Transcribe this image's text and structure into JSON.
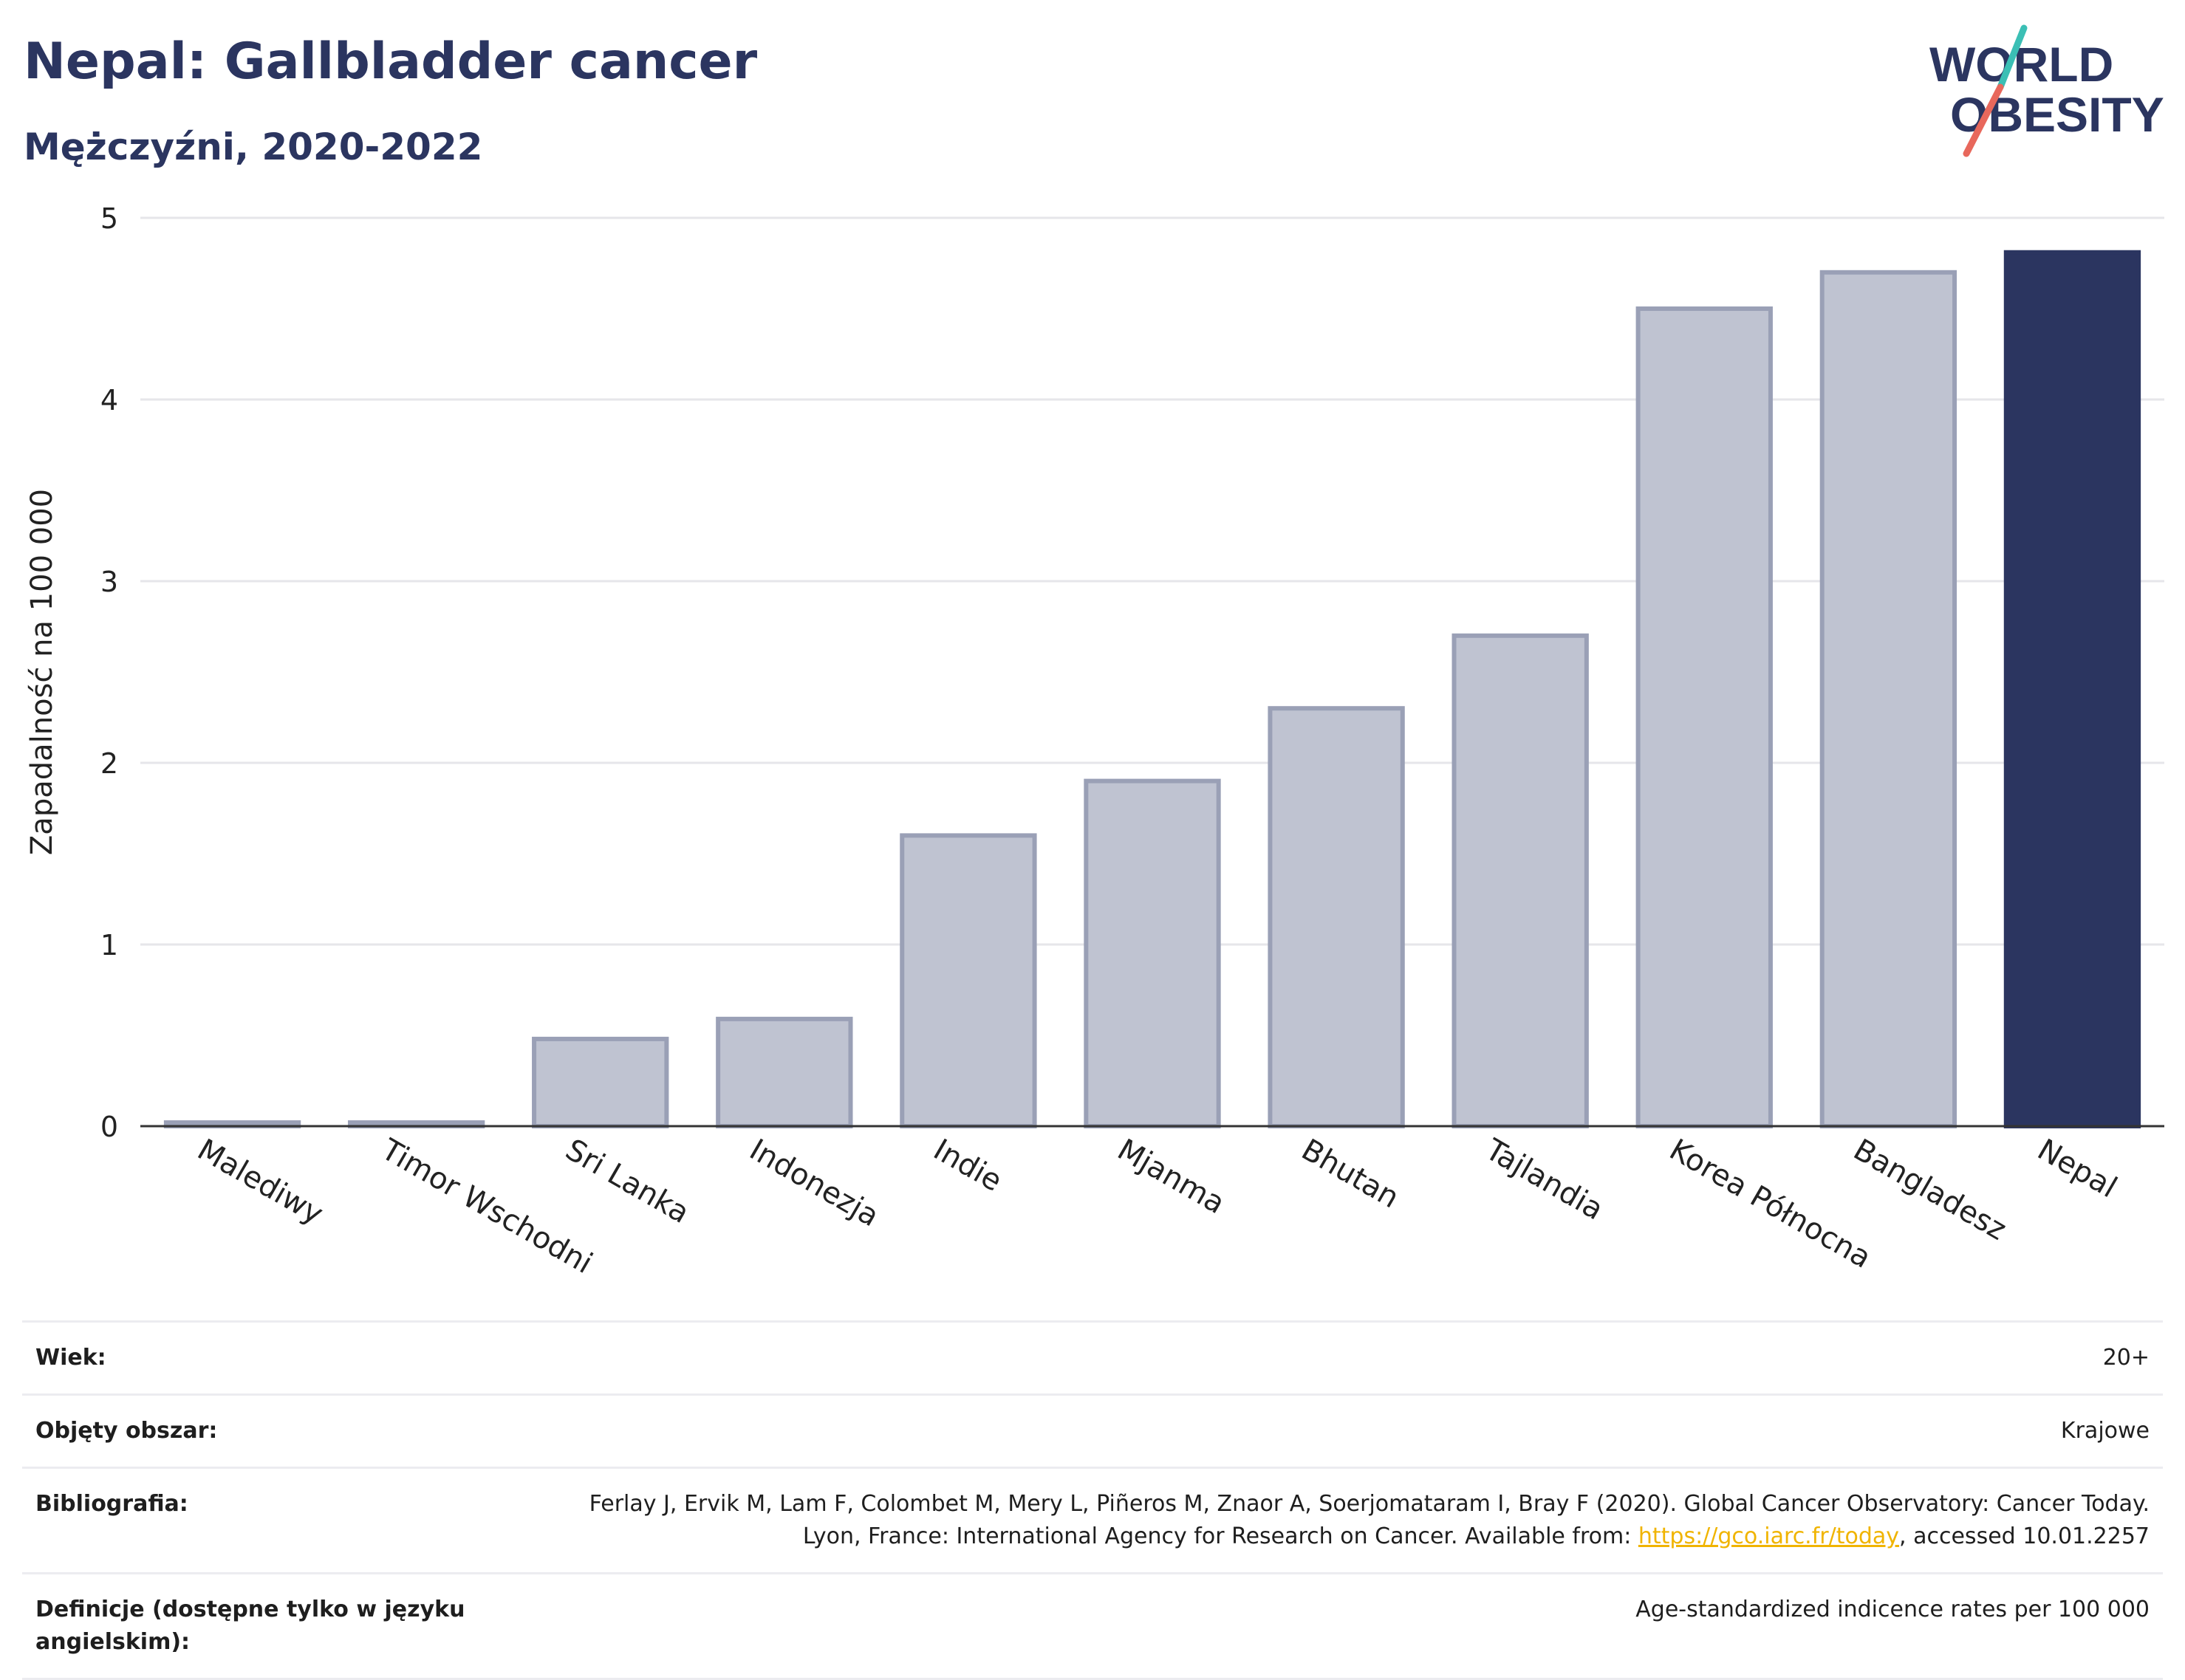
{
  "title": "Nepal: Gallbladder cancer",
  "subtitle": "Mężczyźni, 2020-2022",
  "logo": {
    "line1": "WORLD",
    "line2": "OBESITY",
    "colors": {
      "text": "#2b3560",
      "slash_red": "#e8685c",
      "slash_teal": "#3bbfb5"
    }
  },
  "colors": {
    "bar": "#bfc3d1",
    "bar_stroke": "#9aa0b6",
    "highlight": "#2b3560",
    "grid": "#e6e6ea",
    "link": "#f0b400"
  },
  "chart_data": {
    "type": "bar",
    "categories": [
      "Malediwy",
      "Timor Wschodni",
      "Sri Lanka",
      "Indonezja",
      "Indie",
      "Mjanma",
      "Bhutan",
      "Tajlandia",
      "Korea Północna",
      "Bangladesz",
      "Nepal"
    ],
    "values": [
      0.02,
      0.02,
      0.48,
      0.59,
      1.6,
      1.9,
      2.3,
      2.7,
      4.5,
      4.7,
      4.81
    ],
    "highlight_index": 10,
    "title": "Nepal: Gallbladder cancer",
    "subtitle": "Mężczyźni, 2020-2022",
    "xlabel": "",
    "ylabel": "Zapadalność na 100 000",
    "ylim": [
      0,
      5
    ],
    "yticks": [
      0,
      1,
      2,
      3,
      4,
      5
    ],
    "grid": true
  },
  "info": [
    {
      "label": "Wiek:",
      "value": "20+"
    },
    {
      "label": "Objęty obszar:",
      "value": "Krajowe"
    },
    {
      "label": "Bibliografia:",
      "value_pre": "Ferlay J, Ervik M, Lam F, Colombet M, Mery L, Piñeros M, Znaor A, Soerjomataram I, Bray F (2020). Global Cancer Observatory: Cancer Today. Lyon, France: International Agency for Research on Cancer. Available from: ",
      "link": "https://gco.iarc.fr/today",
      "value_post": ", accessed 10.01.2257"
    },
    {
      "label": "Definicje (dostępne tylko w języku angielskim):",
      "value": "Age-standardized indicence rates per 100 000"
    }
  ]
}
